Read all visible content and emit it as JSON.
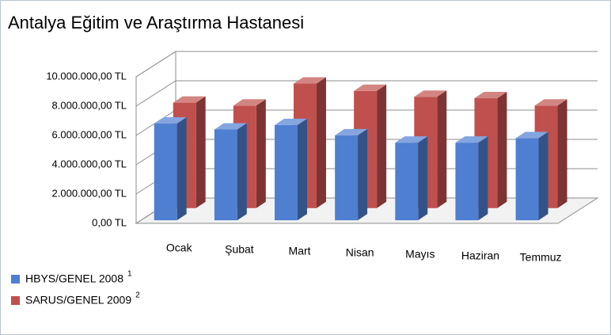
{
  "chart_data": {
    "type": "bar3d",
    "title": "Antalya Eğitim ve Araştırma Hastanesi",
    "categories": [
      "Ocak",
      "Şubat",
      "Mart",
      "Nisan",
      "Mayıs",
      "Haziran",
      "Temmuz"
    ],
    "series": [
      {
        "name": "HBYS/GENEL 2008",
        "superscript": "1",
        "color": "#4f7fd1",
        "values": [
          6600000,
          6200000,
          6500000,
          5800000,
          5300000,
          5300000,
          5600000
        ]
      },
      {
        "name": "SARUS/GENEL 2009",
        "superscript": "2",
        "color": "#c0504d",
        "values": [
          7200000,
          7000000,
          8500000,
          8000000,
          7600000,
          7500000,
          7000000
        ]
      }
    ],
    "ylim": [
      0,
      10000000
    ],
    "yticks": [
      {
        "value": 0,
        "label": "0,00 TL"
      },
      {
        "value": 2000000,
        "label": "2.000.000,00 TL"
      },
      {
        "value": 4000000,
        "label": "4.000.000,00 TL"
      },
      {
        "value": 6000000,
        "label": "6.000.000,00 TL"
      },
      {
        "value": 8000000,
        "label": "8.000.000,00 TL"
      },
      {
        "value": 10000000,
        "label": "10.000.000,00 TL"
      }
    ],
    "grid": true
  }
}
